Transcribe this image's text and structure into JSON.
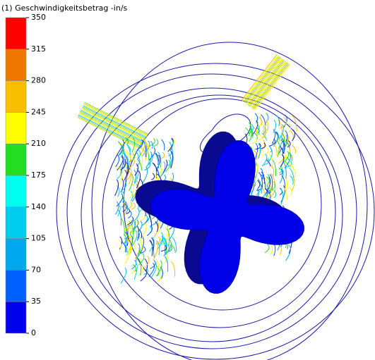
{
  "legend": {
    "title": "(1) Geschwindigkeitsbetrag -in/s",
    "labels": [
      "350",
      "315",
      "280",
      "245",
      "210",
      "175",
      "140",
      "105",
      "70",
      "35",
      "0"
    ],
    "colors": [
      "#ff0000",
      "#f07800",
      "#f8c000",
      "#ffff00",
      "#22dd22",
      "#00ffee",
      "#00ccee",
      "#00a8f0",
      "#0060ff",
      "#0000ee"
    ]
  }
}
